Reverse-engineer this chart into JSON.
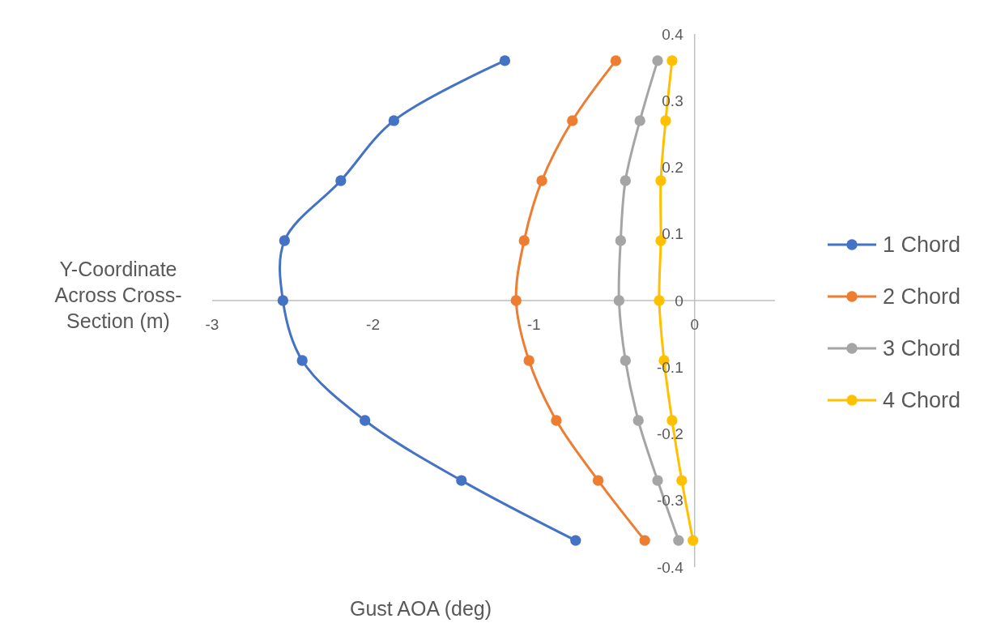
{
  "chart_data": {
    "type": "line",
    "xlabel": "Gust AOA (deg)",
    "ylabel": "Y-Coordinate Across Cross-Section (m)",
    "xlim": [
      -3,
      0.5
    ],
    "xticks": [
      -3,
      -2,
      -1,
      0
    ],
    "ylim": [
      -0.4,
      0.4
    ],
    "yticks": [
      -0.4,
      -0.3,
      -0.2,
      -0.1,
      0,
      0.1,
      0.2,
      0.3,
      0.4
    ],
    "grid": false,
    "legend": "right",
    "marker": "circle",
    "line_style": "solid",
    "series": [
      {
        "name": "1 Chord",
        "color": "#4472c4",
        "x": [
          -1.18,
          -1.87,
          -2.2,
          -2.55,
          -2.56,
          -2.44,
          -2.05,
          -1.45,
          -0.74
        ],
        "values": [
          0.36,
          0.27,
          0.18,
          0.09,
          0,
          -0.09,
          -0.18,
          -0.27,
          -0.36
        ]
      },
      {
        "name": "2 Chord",
        "color": "#ed7d31",
        "x": [
          -0.49,
          -0.76,
          -0.95,
          -1.06,
          -1.11,
          -1.03,
          -0.86,
          -0.6,
          -0.31
        ],
        "values": [
          0.36,
          0.27,
          0.18,
          0.09,
          0,
          -0.09,
          -0.18,
          -0.27,
          -0.36
        ]
      },
      {
        "name": "3 Chord",
        "color": "#a5a5a5",
        "x": [
          -0.23,
          -0.34,
          -0.43,
          -0.46,
          -0.47,
          -0.43,
          -0.35,
          -0.23,
          -0.1
        ],
        "values": [
          0.36,
          0.27,
          0.18,
          0.09,
          0,
          -0.09,
          -0.18,
          -0.27,
          -0.36
        ]
      },
      {
        "name": "4 Chord",
        "color": "#ffc000",
        "x": [
          -0.14,
          -0.18,
          -0.21,
          -0.21,
          -0.22,
          -0.19,
          -0.14,
          -0.08,
          -0.01
        ],
        "values": [
          0.36,
          0.27,
          0.18,
          0.09,
          0,
          -0.09,
          -0.18,
          -0.27,
          -0.36
        ]
      }
    ]
  }
}
